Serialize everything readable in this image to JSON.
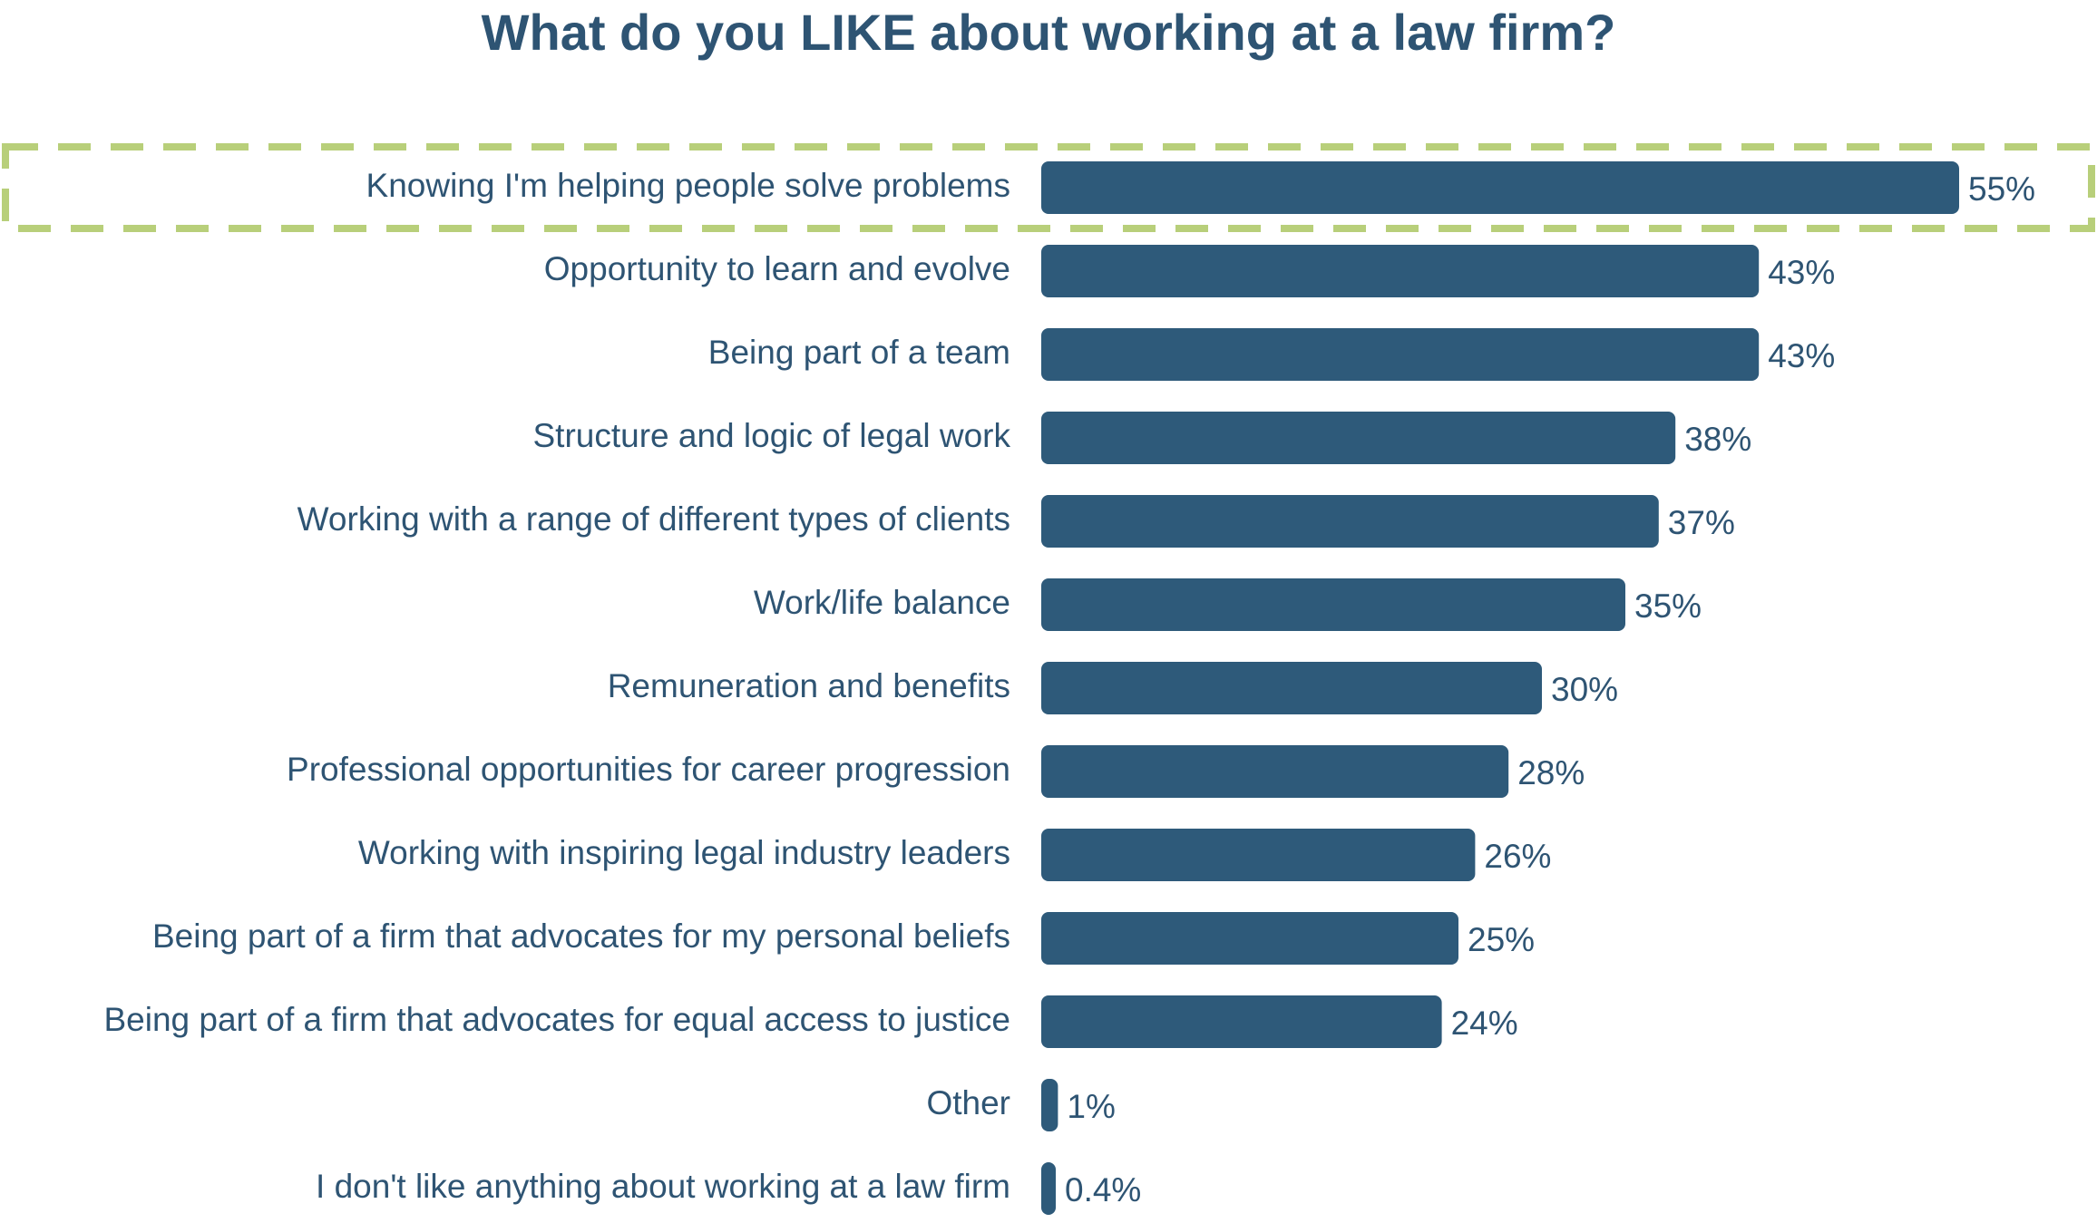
{
  "colors": {
    "bar": "#2e5a7a",
    "text": "#2e5473",
    "highlight": "#b8cf7a",
    "background": "#ffffff"
  },
  "chart_data": {
    "type": "bar",
    "orientation": "horizontal",
    "title": "What do you LIKE about working at a law firm?",
    "xlabel": "",
    "ylabel": "",
    "xlim": [
      0,
      55
    ],
    "grid": false,
    "legend": "none",
    "value_suffix": "%",
    "highlighted_category_index": 0,
    "categories": [
      "Knowing I'm helping people solve problems",
      "Opportunity to learn and evolve",
      "Being part of a team",
      "Structure and logic of legal work",
      "Working with a range of different types of clients",
      "Work/life balance",
      "Remuneration and benefits",
      "Professional opportunities for career progression",
      "Working with inspiring legal industry leaders",
      "Being part of a firm that advocates for my personal beliefs",
      "Being part of a firm that advocates for equal access to justice",
      "Other",
      "I don't like anything about working at a law firm"
    ],
    "values": [
      55,
      43,
      43,
      38,
      37,
      35,
      30,
      28,
      26,
      25,
      24,
      1,
      0.4
    ],
    "value_labels": [
      "55%",
      "43%",
      "43%",
      "38%",
      "37%",
      "35%",
      "30%",
      "28%",
      "26%",
      "25%",
      "24%",
      "1%",
      "0.4%"
    ]
  }
}
